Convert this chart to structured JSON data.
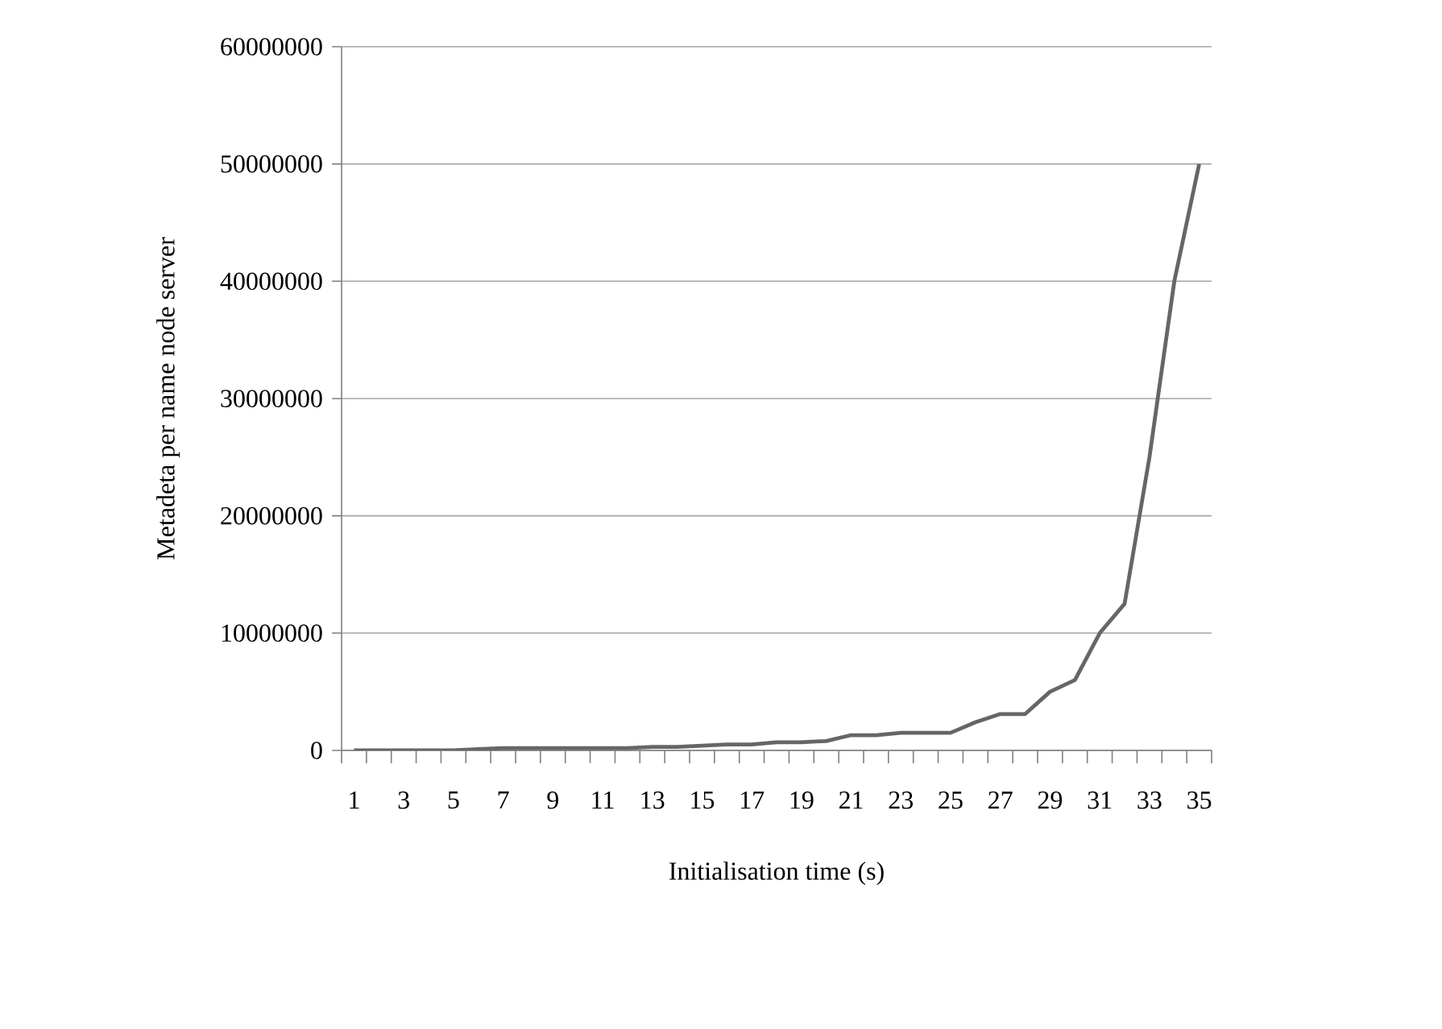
{
  "chart_data": {
    "type": "line",
    "xlabel": "Initialisation time (s)",
    "ylabel": "Metadeta per name node server",
    "categories": [
      "1",
      null,
      "3",
      null,
      "5",
      null,
      "7",
      null,
      "9",
      null,
      "11",
      null,
      "13",
      null,
      "15",
      null,
      "17",
      null,
      "19",
      null,
      "21",
      null,
      "23",
      null,
      "25",
      null,
      "27",
      null,
      "29",
      null,
      "31",
      null,
      "33",
      null,
      "35"
    ],
    "series": [
      {
        "color": "#666666",
        "values": [
          0,
          0,
          0,
          0,
          0,
          100000,
          200000,
          200000,
          200000,
          200000,
          200000,
          200000,
          300000,
          300000,
          400000,
          500000,
          500000,
          700000,
          700000,
          800000,
          1300000,
          1300000,
          1500000,
          1500000,
          1500000,
          2400000,
          3100000,
          3100000,
          5000000,
          6000000,
          10000000,
          12500000,
          25000000,
          40000000,
          50000000
        ]
      }
    ],
    "ylim": [
      0,
      60000000
    ],
    "yticks": [
      0,
      10000000,
      20000000,
      30000000,
      40000000,
      50000000,
      60000000
    ],
    "grid": "y",
    "marker": "none",
    "line_style": "solid"
  }
}
